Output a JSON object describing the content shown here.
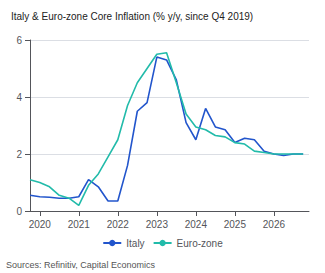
{
  "chart_data": {
    "type": "line",
    "title": "Italy & Euro-zone Core Inflation (% y/y, since Q4 2019)",
    "source": "Sources: Refinitiv, Capital Economics",
    "x": [
      2019.75,
      2020.0,
      2020.25,
      2020.5,
      2020.75,
      2021.0,
      2021.25,
      2021.5,
      2021.75,
      2022.0,
      2022.25,
      2022.5,
      2022.75,
      2023.0,
      2023.25,
      2023.5,
      2023.75,
      2024.0,
      2024.25,
      2024.5,
      2024.75,
      2025.0,
      2025.25,
      2025.5,
      2025.75,
      2026.0,
      2026.25,
      2026.5,
      2026.75
    ],
    "series": [
      {
        "name": "Italy",
        "color": "#2255cc",
        "values": [
          0.55,
          0.5,
          0.48,
          0.45,
          0.45,
          0.5,
          1.1,
          0.85,
          0.35,
          0.35,
          1.6,
          3.5,
          3.8,
          5.4,
          5.3,
          4.6,
          3.1,
          2.5,
          3.6,
          2.95,
          2.85,
          2.4,
          2.55,
          2.5,
          2.1,
          2.0,
          1.95,
          2.0,
          2.0
        ]
      },
      {
        "name": "Euro-zone",
        "color": "#22bbaa",
        "values": [
          1.1,
          1.0,
          0.85,
          0.55,
          0.45,
          0.2,
          0.9,
          1.3,
          1.9,
          2.5,
          3.7,
          4.5,
          5.0,
          5.5,
          5.55,
          4.5,
          3.4,
          2.95,
          2.85,
          2.65,
          2.6,
          2.4,
          2.35,
          2.1,
          2.05,
          2.0,
          2.0,
          2.0,
          2.0
        ]
      }
    ],
    "xlim": [
      2019.75,
      2026.9
    ],
    "xticks": [
      2020,
      2021,
      2022,
      2023,
      2024,
      2025,
      2026
    ],
    "ylim": [
      0,
      6
    ],
    "yticks": [
      0,
      2,
      4,
      6
    ],
    "grid": true,
    "legend": "bottom"
  }
}
